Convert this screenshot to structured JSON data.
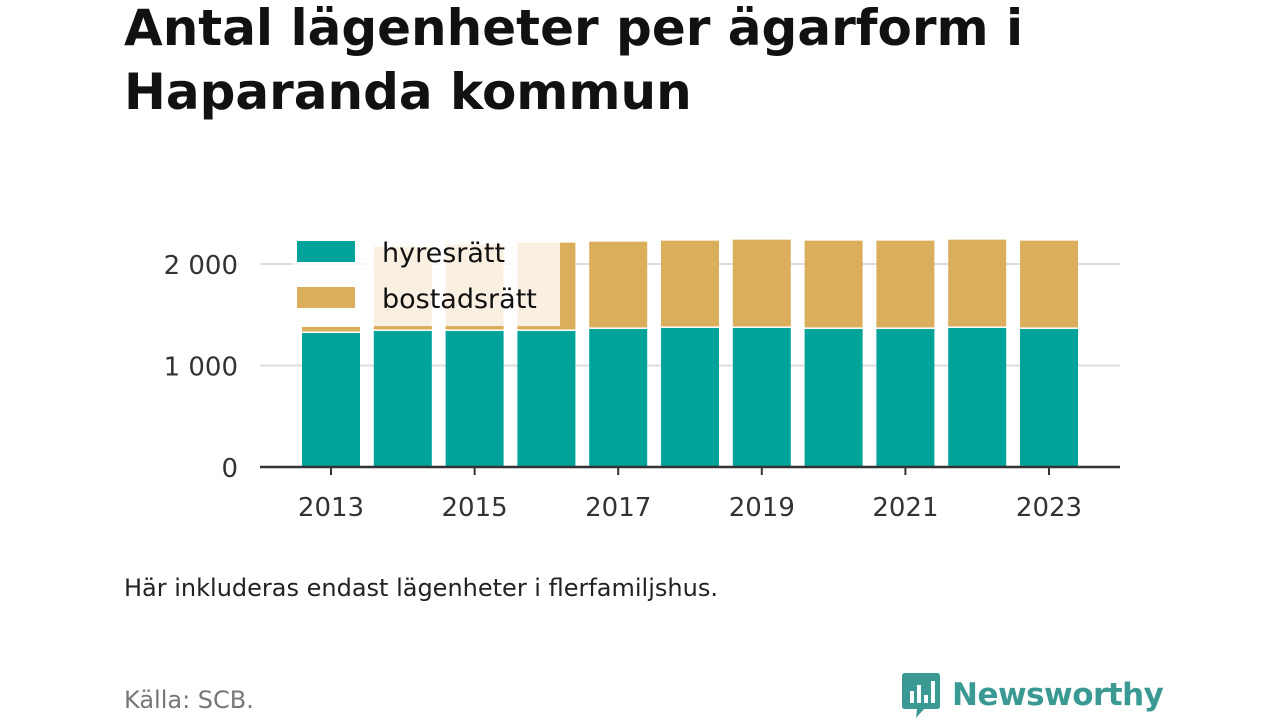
{
  "title": "Antal lägenheter per ägarform i Haparanda kommun",
  "note": "Här inkluderas endast lägenheter i flerfamiljshus.",
  "source": "Källa: SCB.",
  "brand": "Newsworthy",
  "colors": {
    "hyresratt": "#00a39a",
    "bostadsratt": "#dbae5b",
    "grid": "#dddddd",
    "axis": "#333333",
    "brand": "#3a9a93"
  },
  "chart_data": {
    "type": "bar",
    "stacked": true,
    "categories": [
      "2013",
      "2014",
      "2015",
      "2016",
      "2017",
      "2018",
      "2019",
      "2020",
      "2021",
      "2022",
      "2023"
    ],
    "series": [
      {
        "name": "hyresrätt",
        "color": "#00a39a",
        "values": [
          1320,
          1340,
          1340,
          1340,
          1360,
          1370,
          1370,
          1360,
          1360,
          1370,
          1360
        ]
      },
      {
        "name": "bostadsrätt",
        "color": "#dbae5b",
        "values": [
          60,
          830,
          850,
          870,
          860,
          860,
          870,
          870,
          870,
          870,
          870
        ]
      }
    ],
    "x_tick_labels": [
      "2013",
      "2015",
      "2017",
      "2019",
      "2021",
      "2023"
    ],
    "y_ticks": [
      0,
      1000,
      2000
    ],
    "y_tick_labels": [
      "0",
      "1 000",
      "2 000"
    ],
    "ylim": [
      0,
      2400
    ],
    "grid": true,
    "legend_position": "top-left"
  }
}
